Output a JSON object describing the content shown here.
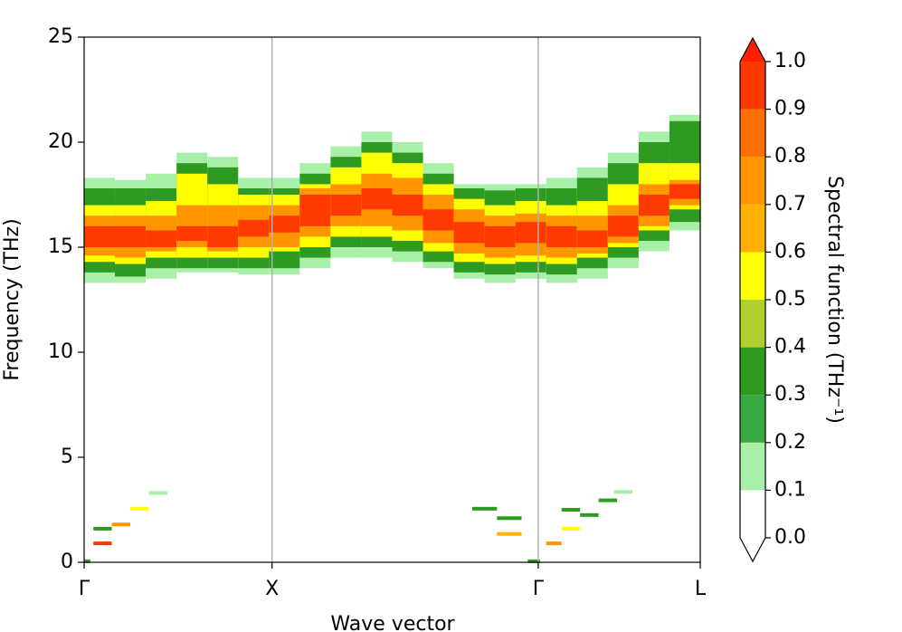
{
  "chart_data": {
    "type": "spectral-map",
    "xlabel": "Wave vector",
    "ylabel": "Frequency (THz)",
    "xlim": [
      0,
      1
    ],
    "ylim": [
      0,
      25
    ],
    "yticks": [
      0,
      5,
      10,
      15,
      20,
      25
    ],
    "xticks": [
      {
        "value": 0,
        "label": "Γ"
      },
      {
        "value": 0.305,
        "label": "X"
      },
      {
        "value": 0.737,
        "label": "Γ"
      },
      {
        "value": 1,
        "label": "L"
      }
    ],
    "x": [
      0,
      0.05,
      0.1,
      0.15,
      0.2,
      0.25,
      0.3,
      0.35,
      0.4,
      0.45,
      0.5,
      0.55,
      0.6,
      0.65,
      0.7,
      0.75,
      0.8,
      0.85,
      0.9,
      0.95,
      1
    ],
    "levels": [
      0.15,
      0.35,
      0.55,
      0.75,
      0.95
    ],
    "ranges": [
      [
        [
          13.3,
          18.3
        ],
        [
          13.8,
          17.8
        ],
        [
          14.3,
          17
        ],
        [
          14.6,
          16.5
        ],
        [
          15,
          16
        ]
      ],
      [
        [
          13.3,
          18.2
        ],
        [
          13.6,
          17.8
        ],
        [
          14.2,
          17
        ],
        [
          14.5,
          16.5
        ],
        [
          15,
          16
        ]
      ],
      [
        [
          13.5,
          18.5
        ],
        [
          14,
          17.8
        ],
        [
          14.5,
          17.2
        ],
        [
          14.8,
          16.5
        ],
        [
          15,
          15.8
        ]
      ],
      [
        [
          13.8,
          19.5
        ],
        [
          14,
          19
        ],
        [
          14.5,
          18.5
        ],
        [
          15,
          17
        ],
        [
          15.3,
          16
        ]
      ],
      [
        [
          13.8,
          19.3
        ],
        [
          14,
          18.8
        ],
        [
          14.5,
          18
        ],
        [
          14.8,
          17
        ],
        [
          15,
          16
        ]
      ],
      [
        [
          13.7,
          18.3
        ],
        [
          14,
          17.8
        ],
        [
          14.5,
          17.5
        ],
        [
          15,
          17
        ],
        [
          15.5,
          16.3
        ]
      ],
      [
        [
          13.7,
          18.3
        ],
        [
          14,
          17.8
        ],
        [
          14.8,
          17.5
        ],
        [
          15,
          17
        ],
        [
          15.7,
          16.5
        ]
      ],
      [
        [
          14,
          19
        ],
        [
          14.5,
          18.5
        ],
        [
          15,
          18
        ],
        [
          15.5,
          17.8
        ],
        [
          16,
          17.5
        ]
      ],
      [
        [
          14.5,
          19.8
        ],
        [
          15,
          19.3
        ],
        [
          15.5,
          18.8
        ],
        [
          16,
          18
        ],
        [
          16.5,
          17.5
        ]
      ],
      [
        [
          14.5,
          20.5
        ],
        [
          15,
          20
        ],
        [
          15.5,
          19.5
        ],
        [
          16,
          18.5
        ],
        [
          16.8,
          17.8
        ]
      ],
      [
        [
          14.3,
          20
        ],
        [
          14.8,
          19.5
        ],
        [
          15.3,
          19
        ],
        [
          15.8,
          18.3
        ],
        [
          16.5,
          17.5
        ]
      ],
      [
        [
          14,
          19
        ],
        [
          14.3,
          18.5
        ],
        [
          14.8,
          18
        ],
        [
          15.2,
          17.5
        ],
        [
          15.8,
          16.8
        ]
      ],
      [
        [
          13.5,
          18
        ],
        [
          13.8,
          17.8
        ],
        [
          14.3,
          17.3
        ],
        [
          14.7,
          16.8
        ],
        [
          15.2,
          16.2
        ]
      ],
      [
        [
          13.3,
          18
        ],
        [
          13.7,
          17.7
        ],
        [
          14.2,
          17
        ],
        [
          14.5,
          16.5
        ],
        [
          15,
          16
        ]
      ],
      [
        [
          13.5,
          18
        ],
        [
          13.8,
          17.8
        ],
        [
          14.3,
          17.2
        ],
        [
          14.6,
          16.6
        ],
        [
          15.2,
          16.2
        ]
      ],
      [
        [
          13.3,
          18.3
        ],
        [
          13.7,
          17.8
        ],
        [
          14.2,
          17
        ],
        [
          14.5,
          16.5
        ],
        [
          15,
          16
        ]
      ],
      [
        [
          13.5,
          18.8
        ],
        [
          14,
          18.3
        ],
        [
          14.5,
          17.2
        ],
        [
          14.7,
          16.5
        ],
        [
          15,
          15.8
        ]
      ],
      [
        [
          14,
          19.5
        ],
        [
          14.5,
          19
        ],
        [
          15,
          18
        ],
        [
          15.2,
          17
        ],
        [
          15.5,
          16.5
        ]
      ],
      [
        [
          14.8,
          20.5
        ],
        [
          15.3,
          20
        ],
        [
          15.8,
          19
        ],
        [
          16,
          18
        ],
        [
          16.5,
          17.5
        ]
      ],
      [
        [
          15.8,
          21.3
        ],
        [
          16.2,
          21
        ],
        [
          16.8,
          19
        ],
        [
          17,
          18.2
        ],
        [
          17.3,
          18
        ]
      ]
    ],
    "acoustic": [
      [
        0,
        0.01,
        0.05,
        0.35
      ],
      [
        0.015,
        0.045,
        0.9,
        0.95
      ],
      [
        0.015,
        0.045,
        1.6,
        0.35
      ],
      [
        0.045,
        0.075,
        1.8,
        0.75
      ],
      [
        0.075,
        0.105,
        2.55,
        0.5
      ],
      [
        0.105,
        0.135,
        3.3,
        0.15
      ],
      [
        0.63,
        0.67,
        2.55,
        0.35
      ],
      [
        0.67,
        0.71,
        2.1,
        0.35
      ],
      [
        0.67,
        0.71,
        1.35,
        0.6
      ],
      [
        0.72,
        0.74,
        0.05,
        0.35
      ],
      [
        0.75,
        0.775,
        0.9,
        0.75
      ],
      [
        0.775,
        0.805,
        1.6,
        0.55
      ],
      [
        0.775,
        0.805,
        2.5,
        0.35
      ],
      [
        0.805,
        0.835,
        2.25,
        0.35
      ],
      [
        0.835,
        0.865,
        2.95,
        0.35
      ],
      [
        0.86,
        0.89,
        3.35,
        0.15
      ]
    ],
    "colorbar": {
      "label": "Spectral function (THz⁻¹)",
      "boundaries": [
        0,
        0.1,
        0.2,
        0.3,
        0.4,
        0.5,
        0.6,
        0.7,
        0.8,
        0.9,
        1
      ],
      "colors": [
        "#ffffff",
        "#a8f0a8",
        "#38aa44",
        "#2e9a22",
        "#b0d030",
        "#ffff00",
        "#ffb000",
        "#ff9600",
        "#ff6e00",
        "#ff3a00"
      ],
      "over_color": "#ff2000",
      "ticks": [
        {
          "value": 0,
          "label": "0.0"
        },
        0.1,
        0.2,
        0.3,
        0.4,
        0.5,
        0.6,
        0.7,
        0.8,
        0.9,
        {
          "value": 1,
          "label": "1.0"
        }
      ]
    }
  }
}
